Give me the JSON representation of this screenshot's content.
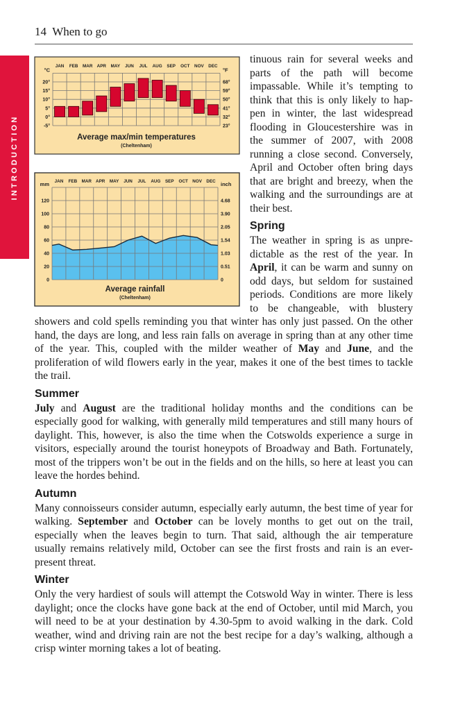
{
  "header": {
    "page_number": "14",
    "title": "When to go"
  },
  "side_tab": {
    "label": "INTRODUCTION",
    "color": "#e0143c"
  },
  "chart_data": [
    {
      "type": "bar",
      "subtype": "floating-range",
      "title": "Average max/min temperatures",
      "subtitle": "(Cheltenham)",
      "categories": [
        "JAN",
        "FEB",
        "MAR",
        "APR",
        "MAY",
        "JUN",
        "JUL",
        "AUG",
        "SEP",
        "OCT",
        "NOV",
        "DEC"
      ],
      "min": [
        0,
        0,
        1,
        3,
        6,
        9,
        11,
        11,
        9,
        6,
        2,
        1
      ],
      "max": [
        6,
        6,
        9,
        12,
        17,
        19,
        22,
        21,
        18,
        15,
        10,
        7
      ],
      "ylabel_left": "°C",
      "ylabel_right": "°F",
      "yticks_left": [
        "20°",
        "15°",
        "10°",
        "5°",
        "0°",
        "-5°"
      ],
      "yticks_right": [
        "68°",
        "59°",
        "50°",
        "41°",
        "32°",
        "23°"
      ],
      "ytick_values": [
        20,
        15,
        10,
        5,
        0,
        -5
      ],
      "ylim": [
        -5,
        25
      ],
      "grid": true,
      "bar_color": "#d6062e",
      "background": "#fbe0a6"
    },
    {
      "type": "area",
      "title": "Average rainfall",
      "subtitle": "(Cheltenham)",
      "categories": [
        "JAN",
        "FEB",
        "MAR",
        "APR",
        "MAY",
        "JUN",
        "JUL",
        "AUG",
        "SEP",
        "OCT",
        "NOV",
        "DEC"
      ],
      "values": [
        54,
        45,
        46,
        48,
        50,
        60,
        66,
        55,
        63,
        67,
        64,
        53
      ],
      "ylabel_left": "mm",
      "ylabel_right": "inch",
      "yticks_left": [
        "120",
        "100",
        "80",
        "60",
        "40",
        "20",
        "0"
      ],
      "yticks_right": [
        "4.68",
        "3.90",
        "2.05",
        "1.54",
        "1.03",
        "0.51",
        "0"
      ],
      "ytick_values": [
        120,
        100,
        80,
        60,
        40,
        20,
        0
      ],
      "ylim": [
        0,
        140
      ],
      "grid": true,
      "fill_color": "#5ac0ee",
      "background": "#fbe0a6"
    }
  ],
  "content": [
    {
      "type": "p",
      "segments": [
        {
          "t": "tinuous rain for several weeks and parts of the path will become impassable. While it’s tempting to think that this is only likely to hap­pen in winter, the last widespread flooding in Gloucestershire was in the summer of 2007, with 2008 running a close second. Conversely, April and October often bring days that are bright and breezy, when the walking and the surroundings are at their best."
        }
      ]
    },
    {
      "type": "h",
      "text": "Spring"
    },
    {
      "type": "p",
      "segments": [
        {
          "t": "The weather in spring is as unpre­dictable as the rest of the year. In "
        },
        {
          "t": "April",
          "b": true
        },
        {
          "t": ", it can be warm and sunny on odd days, but seldom for sus­tained periods. Conditions are more likely to be changeable, with blustery showers and cold spells reminding you that winter has only just passed. On the other hand, the days are long, and less rain falls on average in spring than at any other time of the year. This, coupled with the milder weather of "
        },
        {
          "t": "May",
          "b": true
        },
        {
          "t": " and "
        },
        {
          "t": "June",
          "b": true
        },
        {
          "t": ", and the proliferation of wild flowers early in the year, makes it one of the best times to tackle the trail."
        }
      ]
    },
    {
      "type": "h",
      "text": "Summer"
    },
    {
      "type": "p",
      "segments": [
        {
          "t": "July",
          "b": true
        },
        {
          "t": " and "
        },
        {
          "t": "August",
          "b": true
        },
        {
          "t": " are the traditional holiday months and the conditions can be especially good for walking, with generally mild temperatures and still many hours of daylight. This, however, is also the time when the Cotswolds experience a surge in visitors, especially around the tourist honeypots of Broadway and Bath. Fortunately, most of the trippers won’t be out in the fields and on the hills, so here at least you can leave the hordes behind."
        }
      ]
    },
    {
      "type": "h",
      "text": "Autumn"
    },
    {
      "type": "p",
      "segments": [
        {
          "t": "Many connoisseurs consider autumn, especially early autumn, the best time of year for walking. "
        },
        {
          "t": "September",
          "b": true
        },
        {
          "t": " and "
        },
        {
          "t": "October",
          "b": true
        },
        {
          "t": " can be lovely months to get out on the trail, especially when the leaves begin to turn. That said, although the air tem­perature usually remains relatively mild, October can see the first frosts and rain is an ever-present threat."
        }
      ]
    },
    {
      "type": "h",
      "text": "Winter"
    },
    {
      "type": "p",
      "segments": [
        {
          "t": "Only the very hardiest of souls will attempt the Cotswold Way in winter. There is less daylight; once the clocks have gone back at the end of October, until mid March, you will need to be at your destination by 4.30-5pm to avoid walking in the dark. Cold weather, wind and driving rain are not the best recipe for a day’s walking, although a crisp winter morning takes a lot of beating."
        }
      ]
    }
  ]
}
